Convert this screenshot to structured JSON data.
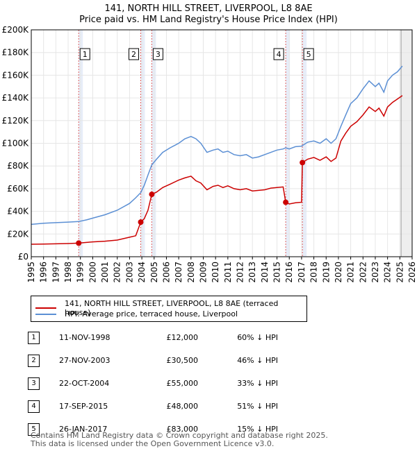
{
  "title_line1": "141, NORTH HILL STREET, LIVERPOOL, L8 8AE",
  "title_line2": "Price paid vs. HM Land Registry's House Price Index (HPI)",
  "colors": {
    "property": "#cc0000",
    "hpi": "#5b8fd4",
    "band": "#dde6f5",
    "grid": "#e6e6e6",
    "vline": "#e06060"
  },
  "legend": {
    "property_label": "141, NORTH HILL STREET, LIVERPOOL, L8 8AE (terraced house)",
    "hpi_label": "HPI: Average price, terraced house, Liverpool"
  },
  "transactions": [
    {
      "num": "1",
      "date": "11-NOV-1998",
      "price": "£12,000",
      "hpi_diff": "60% ↓ HPI"
    },
    {
      "num": "2",
      "date": "27-NOV-2003",
      "price": "£30,500",
      "hpi_diff": "46% ↓ HPI"
    },
    {
      "num": "3",
      "date": "22-OCT-2004",
      "price": "£55,000",
      "hpi_diff": "33% ↓ HPI"
    },
    {
      "num": "4",
      "date": "17-SEP-2015",
      "price": "£48,000",
      "hpi_diff": "51% ↓ HPI"
    },
    {
      "num": "5",
      "date": "26-JAN-2017",
      "price": "£83,000",
      "hpi_diff": "15% ↓ HPI"
    }
  ],
  "footer_line1": "Contains HM Land Registry data © Crown copyright and database right 2025.",
  "footer_line2": "This data is licensed under the Open Government Licence v3.0.",
  "chart_data": {
    "type": "line",
    "title": "Price paid vs. HM Land Registry's House Price Index (HPI)",
    "xlim": [
      1995,
      2026
    ],
    "ylim": [
      0,
      200000
    ],
    "x_ticks": [
      "1995",
      "1996",
      "1997",
      "1998",
      "1999",
      "2000",
      "2001",
      "2002",
      "2003",
      "2004",
      "2005",
      "2006",
      "2007",
      "2008",
      "2009",
      "2010",
      "2011",
      "2012",
      "2013",
      "2014",
      "2015",
      "2016",
      "2017",
      "2018",
      "2019",
      "2020",
      "2021",
      "2022",
      "2023",
      "2024",
      "2025",
      "2026"
    ],
    "y_ticks": [
      {
        "value": 0,
        "label": "£0"
      },
      {
        "value": 20000,
        "label": "£20K"
      },
      {
        "value": 40000,
        "label": "£40K"
      },
      {
        "value": 60000,
        "label": "£60K"
      },
      {
        "value": 80000,
        "label": "£80K"
      },
      {
        "value": 100000,
        "label": "£100K"
      },
      {
        "value": 120000,
        "label": "£120K"
      },
      {
        "value": 140000,
        "label": "£140K"
      },
      {
        "value": 160000,
        "label": "£160K"
      },
      {
        "value": 180000,
        "label": "£180K"
      },
      {
        "value": 200000,
        "label": "£200K"
      }
    ],
    "grid": true,
    "forecast_start": 2025.1,
    "sale_markers": [
      {
        "label": "1",
        "x": 1998.86,
        "y": 12000
      },
      {
        "label": "2",
        "x": 2003.91,
        "y": 30500
      },
      {
        "label": "3",
        "x": 2004.81,
        "y": 55000
      },
      {
        "label": "4",
        "x": 2015.71,
        "y": 48000
      },
      {
        "label": "5",
        "x": 2017.07,
        "y": 83000
      }
    ],
    "series": [
      {
        "name": "141, NORTH HILL STREET, LIVERPOOL, L8 8AE (terraced house)",
        "x": [
          1995.0,
          1996.0,
          1997.0,
          1998.0,
          1998.86,
          1999.5,
          2000.0,
          2001.0,
          2002.0,
          2003.0,
          2003.5,
          2003.91,
          2004.2,
          2004.5,
          2004.81,
          2005.2,
          2005.7,
          2006.3,
          2007.0,
          2007.5,
          2008.0,
          2008.4,
          2008.8,
          2009.3,
          2009.8,
          2010.2,
          2010.6,
          2011.0,
          2011.5,
          2012.0,
          2012.5,
          2013.0,
          2013.5,
          2014.0,
          2014.5,
          2015.0,
          2015.5,
          2015.71,
          2016.0,
          2016.5,
          2017.0,
          2017.07,
          2017.5,
          2018.0,
          2018.5,
          2019.0,
          2019.4,
          2019.8,
          2020.2,
          2020.6,
          2021.0,
          2021.5,
          2022.0,
          2022.5,
          2023.0,
          2023.3,
          2023.7,
          2024.0,
          2024.4,
          2024.8,
          2025.2
        ],
        "values": [
          11000,
          11200,
          11400,
          11600,
          12000,
          12600,
          13100,
          13700,
          14700,
          17200,
          18500,
          30500,
          33500,
          41000,
          55000,
          57000,
          61000,
          64000,
          67500,
          69500,
          71000,
          67000,
          65000,
          59000,
          62000,
          63000,
          61000,
          62500,
          60000,
          59000,
          60000,
          58000,
          58500,
          59000,
          60500,
          61000,
          61500,
          48000,
          46500,
          47500,
          48000,
          83000,
          86000,
          87500,
          85000,
          88000,
          84000,
          87000,
          102000,
          109000,
          115000,
          119000,
          125000,
          132000,
          128000,
          131000,
          124000,
          132000,
          136000,
          139000,
          142000
        ]
      },
      {
        "name": "HPI: Average price, terraced house, Liverpool",
        "x": [
          1995.0,
          1996.0,
          1997.0,
          1998.0,
          1998.86,
          1999.5,
          2000.0,
          2001.0,
          2002.0,
          2003.0,
          2003.5,
          2003.91,
          2004.2,
          2004.5,
          2004.81,
          2005.2,
          2005.7,
          2006.3,
          2007.0,
          2007.5,
          2008.0,
          2008.4,
          2008.8,
          2009.3,
          2009.8,
          2010.2,
          2010.6,
          2011.0,
          2011.5,
          2012.0,
          2012.5,
          2013.0,
          2013.5,
          2014.0,
          2014.5,
          2015.0,
          2015.5,
          2015.71,
          2016.0,
          2016.5,
          2017.0,
          2017.07,
          2017.5,
          2018.0,
          2018.5,
          2019.0,
          2019.4,
          2019.8,
          2020.2,
          2020.6,
          2021.0,
          2021.5,
          2022.0,
          2022.5,
          2023.0,
          2023.3,
          2023.7,
          2024.0,
          2024.4,
          2024.8,
          2025.2
        ],
        "values": [
          28500,
          29500,
          30000,
          30500,
          31000,
          32500,
          34000,
          37000,
          41000,
          47000,
          52000,
          56500,
          63000,
          72000,
          81000,
          86000,
          92000,
          96000,
          100000,
          104000,
          106000,
          104000,
          100000,
          92000,
          94000,
          95000,
          92000,
          93000,
          90000,
          89000,
          90000,
          87000,
          88000,
          90000,
          92000,
          94000,
          95000,
          96000,
          95000,
          97000,
          97500,
          98000,
          101000,
          102000,
          100000,
          104000,
          100000,
          104000,
          115000,
          125000,
          135000,
          140000,
          148000,
          155000,
          150000,
          153000,
          145000,
          155000,
          160000,
          163000,
          168000
        ]
      }
    ]
  }
}
